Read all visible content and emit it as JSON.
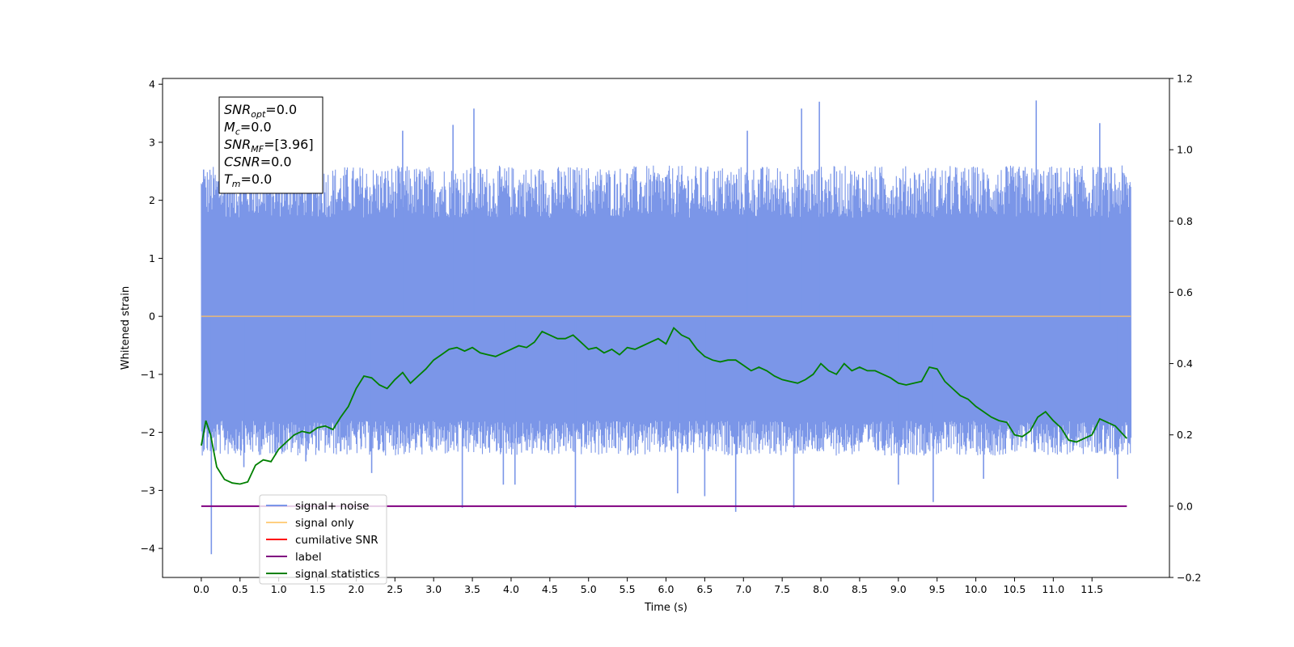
{
  "chart_data": {
    "type": "line",
    "xlabel": "Time (s)",
    "ylabel": "Whitened strain",
    "xlim": [
      -0.5,
      12.5
    ],
    "ylim": [
      -4.5,
      4.1
    ],
    "y2lim": [
      -0.2,
      1.2
    ],
    "x_ticks": [
      0.0,
      0.5,
      1.0,
      1.5,
      2.0,
      2.5,
      3.0,
      3.5,
      4.0,
      4.5,
      5.0,
      5.5,
      6.0,
      6.5,
      7.0,
      7.5,
      8.0,
      8.5,
      9.0,
      9.5,
      10.0,
      10.5,
      11.0,
      11.5
    ],
    "x_tick_labels": [
      "0.0",
      "0.5",
      "1.0",
      "1.5",
      "2.0",
      "2.5",
      "3.0",
      "3.5",
      "4.0",
      "4.5",
      "5.0",
      "5.5",
      "6.0",
      "6.5",
      "7.0",
      "7.5",
      "8.0",
      "8.5",
      "9.0",
      "9.5",
      "10.0",
      "10.5",
      "11.0",
      "11.5"
    ],
    "y_ticks": [
      4,
      3,
      2,
      1,
      0,
      -1,
      -2,
      -3,
      -4
    ],
    "y_tick_labels": [
      "4",
      "3",
      "2",
      "1",
      "0",
      "−1",
      "−2",
      "−3",
      "−4"
    ],
    "y2_ticks": [
      1.2,
      1.0,
      0.8,
      0.6,
      0.4,
      0.2,
      0.0,
      -0.2
    ],
    "y2_tick_labels": [
      "1.2",
      "1.0",
      "0.8",
      "0.6",
      "0.4",
      "0.2",
      "0.0",
      "−0.2"
    ],
    "noise": {
      "name": "signal+ noise",
      "color": "#7b96e8",
      "x_range": [
        0.0,
        12.0
      ],
      "upper_typical": [
        1.7,
        2.6
      ],
      "lower_typical": [
        -1.8,
        -2.4
      ],
      "spikes": [
        {
          "x": 0.03,
          "y": 2.53
        },
        {
          "x": 0.13,
          "y": -4.1
        },
        {
          "x": 0.55,
          "y": -2.6
        },
        {
          "x": 1.35,
          "y": -2.5
        },
        {
          "x": 2.2,
          "y": -2.7
        },
        {
          "x": 2.6,
          "y": 3.2
        },
        {
          "x": 3.25,
          "y": 3.3
        },
        {
          "x": 3.37,
          "y": -3.3
        },
        {
          "x": 3.52,
          "y": 3.58
        },
        {
          "x": 3.9,
          "y": -2.9
        },
        {
          "x": 4.05,
          "y": -2.9
        },
        {
          "x": 4.83,
          "y": -3.3
        },
        {
          "x": 6.15,
          "y": -3.05
        },
        {
          "x": 6.5,
          "y": -3.1
        },
        {
          "x": 6.9,
          "y": -3.37
        },
        {
          "x": 7.05,
          "y": 3.2
        },
        {
          "x": 7.65,
          "y": -3.3
        },
        {
          "x": 7.75,
          "y": 3.58
        },
        {
          "x": 7.98,
          "y": 3.7
        },
        {
          "x": 9.45,
          "y": -3.2
        },
        {
          "x": 10.1,
          "y": -2.8
        },
        {
          "x": 10.78,
          "y": 3.72
        },
        {
          "x": 11.6,
          "y": 3.33
        },
        {
          "x": 11.83,
          "y": -2.8
        },
        {
          "x": 9.0,
          "y": -2.9
        },
        {
          "x": 5.6,
          "y": 2.5
        }
      ]
    },
    "signal_only": {
      "name": "signal only",
      "color": "#ffa500",
      "y": 0.0
    },
    "cumulative_snr": {
      "name": "cumilative SNR",
      "color": "#ff0000"
    },
    "label_series": {
      "name": "label",
      "color": "#800080",
      "axis": "right",
      "x": [
        0.0,
        11.95
      ],
      "y": [
        0.0,
        0.0
      ]
    },
    "statistics_series": {
      "name": "signal statistics",
      "color": "#008000",
      "axis": "right",
      "x": [
        0.0,
        0.06,
        0.12,
        0.2,
        0.3,
        0.4,
        0.5,
        0.6,
        0.7,
        0.8,
        0.9,
        1.0,
        1.1,
        1.2,
        1.3,
        1.4,
        1.5,
        1.6,
        1.7,
        1.8,
        1.9,
        2.0,
        2.1,
        2.2,
        2.3,
        2.4,
        2.5,
        2.6,
        2.7,
        2.8,
        2.9,
        3.0,
        3.1,
        3.2,
        3.3,
        3.4,
        3.5,
        3.6,
        3.7,
        3.8,
        3.9,
        4.0,
        4.1,
        4.2,
        4.3,
        4.4,
        4.5,
        4.6,
        4.7,
        4.8,
        4.9,
        5.0,
        5.1,
        5.2,
        5.3,
        5.4,
        5.5,
        5.6,
        5.7,
        5.8,
        5.9,
        6.0,
        6.1,
        6.2,
        6.3,
        6.4,
        6.5,
        6.6,
        6.7,
        6.8,
        6.9,
        7.0,
        7.1,
        7.2,
        7.3,
        7.4,
        7.5,
        7.6,
        7.7,
        7.8,
        7.9,
        8.0,
        8.1,
        8.2,
        8.3,
        8.4,
        8.5,
        8.6,
        8.7,
        8.8,
        8.9,
        9.0,
        9.1,
        9.2,
        9.3,
        9.4,
        9.5,
        9.6,
        9.7,
        9.8,
        9.9,
        10.0,
        10.1,
        10.2,
        10.3,
        10.4,
        10.5,
        10.6,
        10.7,
        10.8,
        10.9,
        11.0,
        11.1,
        11.2,
        11.3,
        11.4,
        11.5,
        11.6,
        11.7,
        11.8,
        11.95
      ],
      "y": [
        0.17,
        0.24,
        0.2,
        0.11,
        0.075,
        0.065,
        0.062,
        0.068,
        0.115,
        0.13,
        0.125,
        0.16,
        0.18,
        0.2,
        0.21,
        0.205,
        0.22,
        0.225,
        0.215,
        0.25,
        0.28,
        0.33,
        0.365,
        0.36,
        0.34,
        0.33,
        0.355,
        0.375,
        0.345,
        0.365,
        0.385,
        0.41,
        0.425,
        0.44,
        0.445,
        0.435,
        0.445,
        0.43,
        0.425,
        0.42,
        0.43,
        0.44,
        0.45,
        0.445,
        0.46,
        0.49,
        0.48,
        0.47,
        0.47,
        0.48,
        0.46,
        0.44,
        0.445,
        0.43,
        0.44,
        0.425,
        0.445,
        0.44,
        0.45,
        0.46,
        0.47,
        0.455,
        0.5,
        0.48,
        0.47,
        0.44,
        0.42,
        0.41,
        0.405,
        0.41,
        0.41,
        0.395,
        0.38,
        0.39,
        0.38,
        0.365,
        0.355,
        0.35,
        0.345,
        0.355,
        0.37,
        0.4,
        0.38,
        0.37,
        0.4,
        0.38,
        0.39,
        0.38,
        0.38,
        0.37,
        0.36,
        0.345,
        0.34,
        0.345,
        0.35,
        0.39,
        0.385,
        0.35,
        0.33,
        0.31,
        0.3,
        0.28,
        0.265,
        0.25,
        0.24,
        0.235,
        0.2,
        0.195,
        0.21,
        0.25,
        0.265,
        0.24,
        0.22,
        0.185,
        0.18,
        0.19,
        0.2,
        0.245,
        0.235,
        0.225,
        0.19
      ]
    },
    "legend": {
      "placement": "lower-left",
      "entries": [
        {
          "label": "signal+ noise",
          "color": "#7b96e8"
        },
        {
          "label": "signal only",
          "color": "#ffcf80"
        },
        {
          "label": "cumilative SNR",
          "color": "#ff0000"
        },
        {
          "label": "label",
          "color": "#800080"
        },
        {
          "label": "signal statistics",
          "color": "#008000"
        }
      ]
    },
    "annotation": {
      "lines": [
        {
          "main": "SNR",
          "sub": "opt",
          "rest": "=0.0"
        },
        {
          "main": "M",
          "sub": "c",
          "rest": "=0.0"
        },
        {
          "main": "SNR",
          "sub": "MF",
          "rest": "=[3.96]"
        },
        {
          "main": "CSNR",
          "sub": "",
          "rest": "=0.0"
        },
        {
          "main": "T",
          "sub": "m",
          "rest": "=0.0"
        }
      ]
    }
  }
}
